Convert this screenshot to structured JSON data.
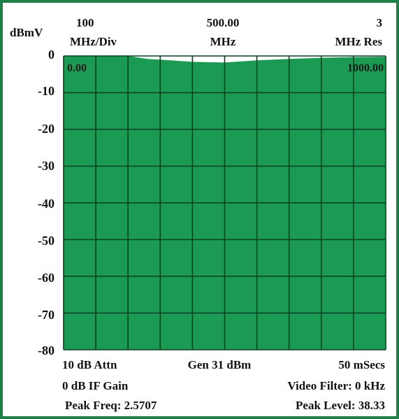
{
  "header": {
    "yunit": "dBmV",
    "scale_value": "100",
    "scale_unit": "MHz/Div",
    "center_value": "500.00",
    "center_unit": "MHz",
    "res_value": "3",
    "res_unit": "MHz Res"
  },
  "footer": {
    "attn": "10 dB Attn",
    "gen": "Gen 31 dBm",
    "sweep": "50 mSecs",
    "if_gain": "0 dB IF Gain",
    "video_filter": "Video Filter: 0 kHz",
    "peak_freq": "Peak Freq: 2.5707",
    "peak_level": "Peak Level: 38.33"
  },
  "colors": {
    "fill": "#1a9a52",
    "grid": "#0e3e22",
    "frame": "#1f7f48",
    "background": "#ffffff"
  },
  "chart_data": {
    "type": "area",
    "ylabel": "dBmV",
    "ylim": [
      -80,
      0
    ],
    "xlim": [
      0,
      1000
    ],
    "x_start_label": "0.00",
    "x_end_label": "1000.00",
    "yticks": [
      "0",
      "-10",
      "-20",
      "-30",
      "-40",
      "-50",
      "-60",
      "-70",
      "-80"
    ],
    "grid": true,
    "series": [
      {
        "x": [
          0,
          100,
          200,
          230,
          260,
          300,
          400,
          500,
          600,
          700,
          800,
          900,
          1000
        ],
        "values": [
          0,
          0,
          0,
          -0.4,
          -0.8,
          -1.0,
          -1.6,
          -1.8,
          -1.2,
          -0.8,
          -0.5,
          -0.3,
          -0.2
        ]
      }
    ]
  }
}
